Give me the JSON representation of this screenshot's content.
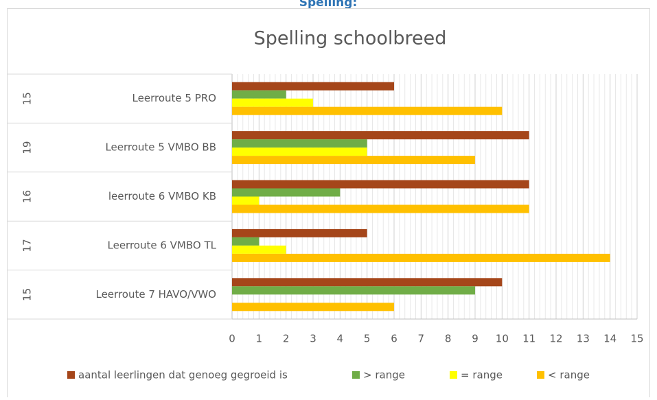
{
  "heading": "Spelling:",
  "chart_data": {
    "type": "hbar",
    "title": "Spelling schoolbreed",
    "categories": [
      "Leerroute 5 PRO",
      "Leerroute 5 VMBO BB",
      "leerroute 6 VMBO KB",
      "Leerroute 6 VMBO TL",
      "Leerroute 7 HAVO/VWO"
    ],
    "group_labels": [
      "15",
      "19",
      "16",
      "17",
      "15"
    ],
    "series": [
      {
        "name": "aantal leerlingen dat genoeg gegroeid is",
        "color": "#a5461a",
        "values": [
          6,
          11,
          11,
          5,
          10
        ]
      },
      {
        "name": "> range",
        "color": "#70ad47",
        "values": [
          2,
          5,
          4,
          1,
          9
        ]
      },
      {
        "name": "= range",
        "color": "#ffff00",
        "values": [
          3,
          5,
          1,
          2,
          0
        ]
      },
      {
        "name": "< range",
        "color": "#ffc000",
        "values": [
          10,
          9,
          11,
          14,
          6
        ]
      }
    ],
    "xlim": [
      0,
      15
    ],
    "xticks": [
      0,
      1,
      2,
      3,
      4,
      5,
      6,
      7,
      8,
      9,
      10,
      11,
      12,
      13,
      14,
      15
    ],
    "grid": true,
    "minor_grid": true,
    "legend": "bottom"
  }
}
